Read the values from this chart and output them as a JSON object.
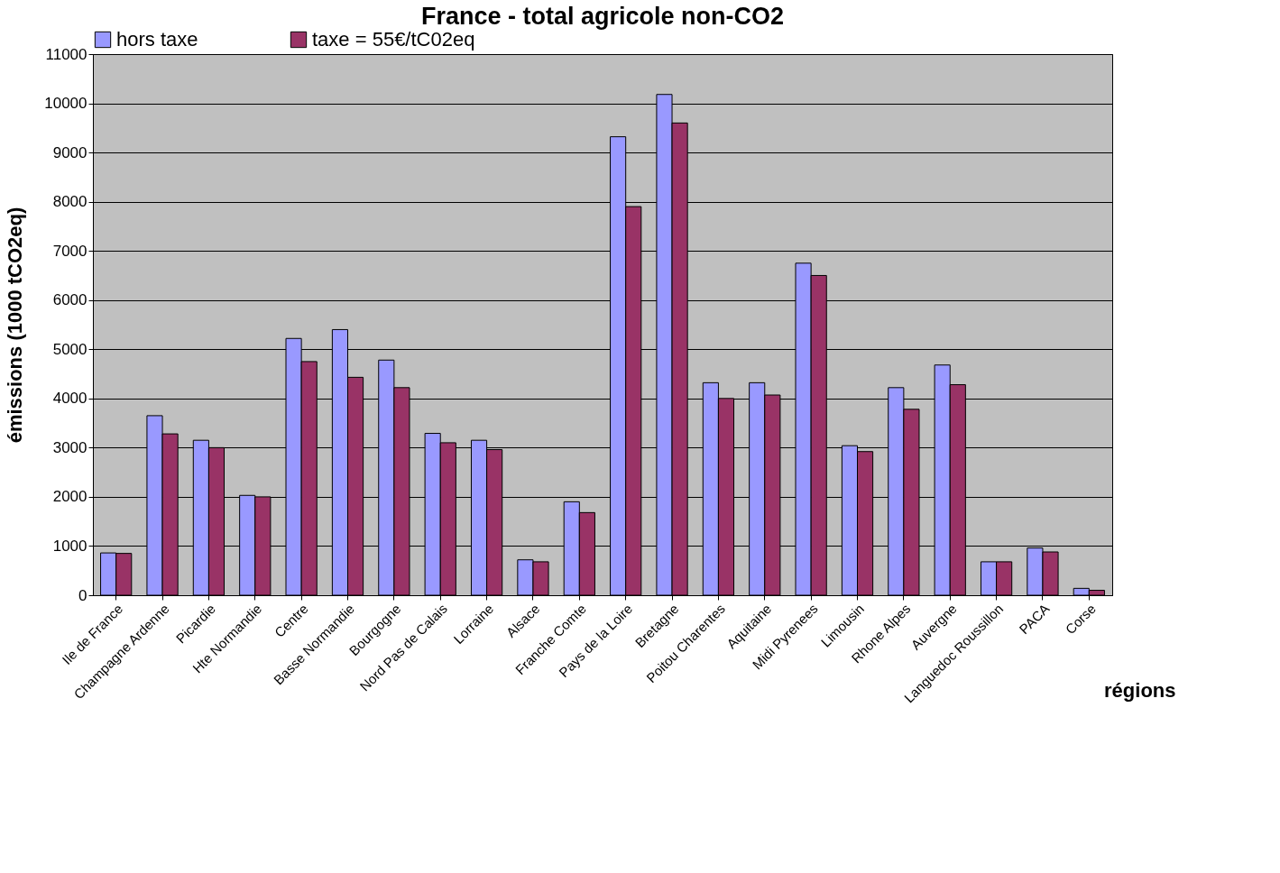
{
  "chart_data": {
    "type": "bar",
    "title": "France - total agricole non-CO2",
    "xlabel": "régions",
    "ylabel": "émissions (1000 tCO2eq)",
    "categories": [
      "Ile de France",
      "Champagne Ardenne",
      "Picardie",
      "Hte Normandie",
      "Centre",
      "Basse Normandie",
      "Bourgogne",
      "Nord Pas de Calais",
      "Lorraine",
      "Alsace",
      "Franche Comte",
      "Pays de la Loire",
      "Bretagne",
      "Poitou Charentes",
      "Aquitaine",
      "Midi Pyrenees",
      "Limousin",
      "Rhone Alpes",
      "Auvergne",
      "Languedoc Roussillon",
      "PACA",
      "Corse"
    ],
    "series": [
      {
        "name": "hors taxe",
        "color": "#9999ff",
        "values": [
          860,
          3650,
          3150,
          2030,
          5220,
          5400,
          4780,
          3290,
          3150,
          720,
          1900,
          9320,
          10180,
          4320,
          4320,
          6750,
          3040,
          4220,
          4680,
          680,
          960,
          140
        ]
      },
      {
        "name": "taxe = 55€/tC02eq",
        "color": "#993366",
        "values": [
          850,
          3280,
          3000,
          2000,
          4750,
          4430,
          4220,
          3100,
          2960,
          680,
          1680,
          7900,
          9600,
          4000,
          4070,
          6500,
          2920,
          3780,
          4280,
          680,
          880,
          100
        ]
      }
    ],
    "ylim": [
      0,
      11000
    ],
    "yticks": [
      0,
      1000,
      2000,
      3000,
      4000,
      5000,
      6000,
      7000,
      8000,
      9000,
      10000,
      11000
    ],
    "grid": "y",
    "legend": "top"
  }
}
